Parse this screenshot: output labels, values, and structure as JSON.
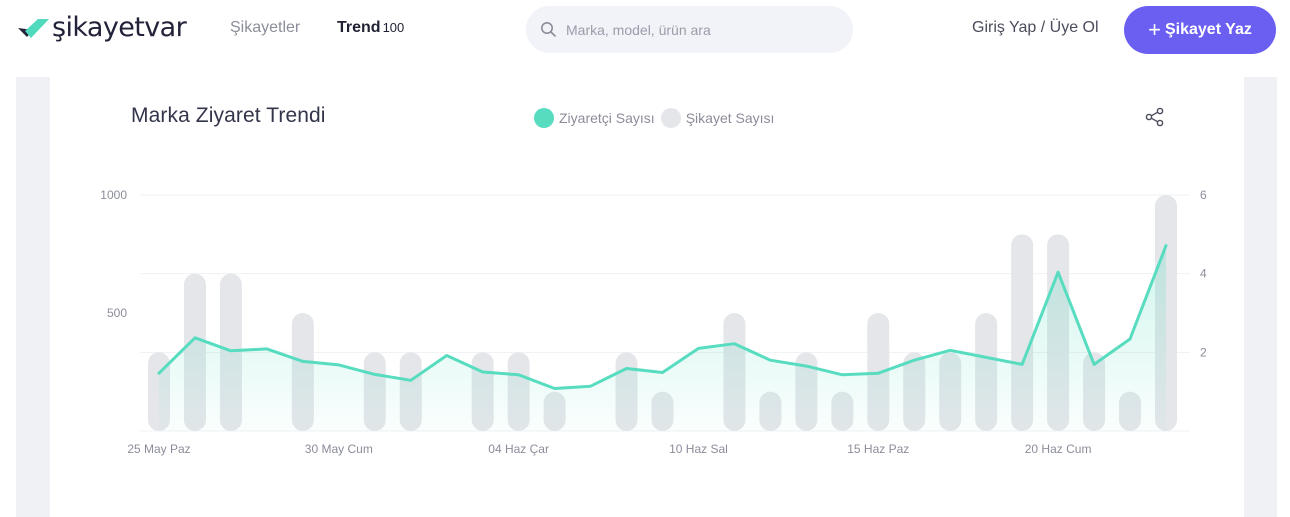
{
  "header": {
    "logo_text": "şikayetvar",
    "nav_complaints": "Şikayetler",
    "nav_trend": "Trend",
    "nav_trend_count": "100",
    "search_placeholder": "Marka, model, ürün ara",
    "login": "Giriş Yap / Üye Ol",
    "cta_label": "Şikayet Yaz"
  },
  "colors": {
    "brand": "#6a5ff1",
    "visitor_line": "#58dcc0",
    "complaint_bar": "#e5e6ea"
  },
  "card": {
    "title": "Marka Ziyaret Trendi",
    "legend_visitors": "Ziyaretçi Sayısı",
    "legend_complaints": "Şikayet Sayısı",
    "share_icon": "share-icon"
  },
  "chart_data": {
    "type": "bar+line",
    "title": "Marka Ziyaret Trendi",
    "x_tick_labels": [
      "25 May Paz",
      "30 May Cum",
      "04 Haz Çar",
      "10 Haz Sal",
      "15 Haz Paz",
      "20 Haz Cum"
    ],
    "x_tick_index": [
      0,
      5,
      10,
      15,
      20,
      25
    ],
    "left_axis": {
      "ticks": [
        500,
        1000
      ],
      "ylim": [
        0,
        1000
      ]
    },
    "right_axis": {
      "ticks": [
        2,
        4,
        6
      ],
      "ylim": [
        0,
        6
      ]
    },
    "legend_position": "top-center",
    "grid": true,
    "series": [
      {
        "name": "Ziyaretçi Sayısı",
        "axis": "left",
        "kind": "line",
        "values": [
          245,
          395,
          340,
          348,
          295,
          280,
          240,
          215,
          320,
          250,
          238,
          180,
          190,
          265,
          248,
          350,
          370,
          300,
          275,
          238,
          245,
          300,
          342,
          312,
          282,
          673,
          282,
          390,
          785
        ]
      },
      {
        "name": "Şikayet Sayısı",
        "axis": "right",
        "kind": "bar",
        "values": [
          2,
          4,
          4,
          0,
          3,
          0,
          2,
          2,
          0,
          2,
          2,
          1,
          0,
          2,
          1,
          0,
          3,
          1,
          2,
          1,
          3,
          2,
          2,
          3,
          5,
          5,
          2,
          1,
          6
        ]
      }
    ]
  }
}
